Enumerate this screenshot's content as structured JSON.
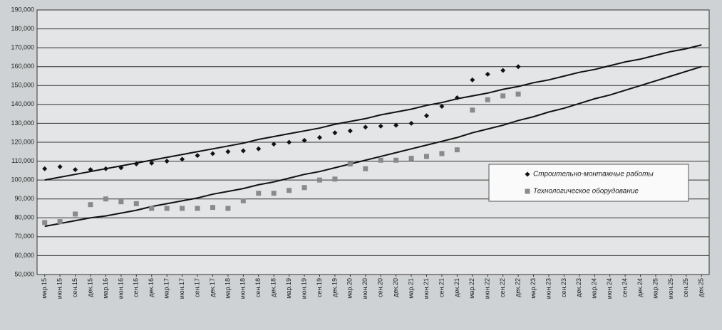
{
  "chart_data": {
    "type": "scatter",
    "categories": [
      "мар.15",
      "июн.15",
      "сен.15",
      "дек.15",
      "мар.16",
      "июн.16",
      "сен.16",
      "дек.16",
      "мар.17",
      "июн.17",
      "сен.17",
      "дек.17",
      "мар.18",
      "июн.18",
      "сен.18",
      "дек.18",
      "мар.19",
      "июн.19",
      "сен.19",
      "дек.19",
      "мар.20",
      "июн.20",
      "сен.20",
      "дек.20",
      "мар.21",
      "июн.21",
      "сен.21",
      "дек.21",
      "мар.22",
      "июн.22",
      "сен.22",
      "дек.22",
      "мар.23",
      "июн.23",
      "сен.23",
      "дек.23",
      "мар.24",
      "июн.24",
      "сен.24",
      "дек.24",
      "мар.25",
      "июн.25",
      "сен.25",
      "дек.25"
    ],
    "series": [
      {
        "name": "Строительно-монтажные работы",
        "color": "#111111",
        "marker": "diamond",
        "values": [
          106000,
          107000,
          105500,
          105500,
          106000,
          106500,
          108500,
          109000,
          110000,
          111000,
          113000,
          114000,
          115000,
          115500,
          116500,
          119000,
          120000,
          121000,
          122500,
          125000,
          126000,
          128000,
          128500,
          129000,
          130000,
          134000,
          139000,
          143500,
          153000,
          156000,
          158000,
          160000,
          null,
          null,
          null,
          null,
          null,
          null,
          null,
          null,
          null,
          null,
          null,
          null
        ]
      },
      {
        "name": "Технологическое оборудование",
        "color": "#8a8a8a",
        "marker": "square",
        "values": [
          77500,
          78000,
          82000,
          87000,
          90000,
          88500,
          87500,
          85000,
          85000,
          85000,
          85000,
          85500,
          85000,
          89000,
          93000,
          93000,
          94500,
          96000,
          100000,
          100500,
          108500,
          106000,
          110500,
          110500,
          111500,
          112500,
          114000,
          116000,
          137000,
          142500,
          144500,
          145500,
          null,
          null,
          null,
          null,
          null,
          null,
          null,
          null,
          null,
          null,
          null,
          null
        ]
      }
    ],
    "trendlines": [
      {
        "color": "#111111",
        "values": [
          100000,
          101500,
          103000,
          104500,
          106000,
          107500,
          109000,
          110500,
          112000,
          113500,
          115000,
          116500,
          118000,
          119500,
          121500,
          123000,
          124500,
          126000,
          127500,
          129500,
          131000,
          132500,
          134500,
          136000,
          137500,
          139500,
          141000,
          143000,
          144500,
          146000,
          148000,
          149500,
          151500,
          153000,
          155000,
          157000,
          158500,
          160500,
          162500,
          164000,
          166000,
          168000,
          169500,
          171500
        ]
      },
      {
        "color": "#111111",
        "values": [
          75500,
          77000,
          78500,
          80000,
          81000,
          82500,
          84000,
          86000,
          87500,
          89000,
          90500,
          92500,
          94000,
          95500,
          97500,
          99000,
          101000,
          103000,
          104500,
          106500,
          108500,
          110500,
          112500,
          114500,
          116500,
          118500,
          120500,
          122500,
          125000,
          127000,
          129000,
          131500,
          133500,
          136000,
          138000,
          140500,
          143000,
          145000,
          147500,
          150000,
          152500,
          155000,
          157500,
          160000
        ]
      }
    ],
    "ylim": [
      50000,
      190000
    ],
    "yticks": [
      {
        "value": 50000,
        "label": "50,000"
      },
      {
        "value": 60000,
        "label": "60,000"
      },
      {
        "value": 70000,
        "label": "70,000"
      },
      {
        "value": 80000,
        "label": "80,000"
      },
      {
        "value": 90000,
        "label": "90,000"
      },
      {
        "value": 100000,
        "label": "100,000"
      },
      {
        "value": 110000,
        "label": "110,000"
      },
      {
        "value": 120000,
        "label": "120,000"
      },
      {
        "value": 130000,
        "label": "130,000"
      },
      {
        "value": 140000,
        "label": "140,000"
      },
      {
        "value": 150000,
        "label": "150,000"
      },
      {
        "value": 160000,
        "label": "160,000"
      },
      {
        "value": 170000,
        "label": "170,000"
      },
      {
        "value": 180000,
        "label": "180,000"
      },
      {
        "value": 190000,
        "label": "190,000"
      }
    ],
    "grid": true,
    "legend": "right"
  }
}
